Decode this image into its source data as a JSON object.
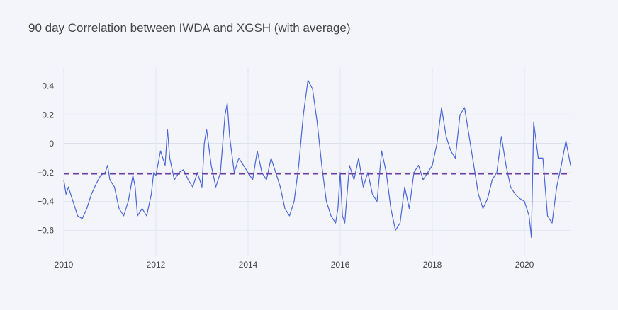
{
  "chart_data": {
    "type": "line",
    "title": "90 day Correlation between IWDA and XGSH (with average)",
    "xlabel": "",
    "ylabel": "",
    "xlim": [
      2010.0,
      2021.0
    ],
    "ylim": [
      -0.78,
      0.53
    ],
    "x_ticks": [
      2010,
      2012,
      2014,
      2016,
      2018,
      2020
    ],
    "x_tick_labels": [
      "2010",
      "2012",
      "2014",
      "2016",
      "2018",
      "2020"
    ],
    "y_ticks": [
      0.4,
      0.2,
      0,
      -0.2,
      -0.4,
      -0.6
    ],
    "y_tick_labels": [
      "0.4",
      "0.2",
      "0",
      "−0.2",
      "−0.4",
      "−0.6"
    ],
    "grid": true,
    "series": [
      {
        "name": "correlation",
        "color": "#4a65d6",
        "x": [
          2010.0,
          2010.05,
          2010.1,
          2010.2,
          2010.3,
          2010.4,
          2010.5,
          2010.55,
          2010.6,
          2010.7,
          2010.8,
          2010.9,
          2010.95,
          2011.0,
          2011.1,
          2011.2,
          2011.3,
          2011.4,
          2011.5,
          2011.55,
          2011.6,
          2011.7,
          2011.8,
          2011.9,
          2011.95,
          2012.0,
          2012.1,
          2012.2,
          2012.25,
          2012.3,
          2012.4,
          2012.5,
          2012.6,
          2012.7,
          2012.8,
          2012.9,
          2013.0,
          2013.05,
          2013.1,
          2013.2,
          2013.3,
          2013.4,
          2013.5,
          2013.55,
          2013.6,
          2013.7,
          2013.8,
          2013.9,
          2014.0,
          2014.1,
          2014.2,
          2014.3,
          2014.4,
          2014.5,
          2014.6,
          2014.7,
          2014.8,
          2014.9,
          2015.0,
          2015.1,
          2015.2,
          2015.3,
          2015.4,
          2015.5,
          2015.6,
          2015.7,
          2015.8,
          2015.9,
          2015.95,
          2016.0,
          2016.05,
          2016.1,
          2016.2,
          2016.3,
          2016.4,
          2016.5,
          2016.6,
          2016.7,
          2016.8,
          2016.9,
          2017.0,
          2017.1,
          2017.2,
          2017.3,
          2017.4,
          2017.5,
          2017.6,
          2017.7,
          2017.8,
          2017.9,
          2018.0,
          2018.1,
          2018.2,
          2018.3,
          2018.4,
          2018.5,
          2018.6,
          2018.7,
          2018.8,
          2018.9,
          2019.0,
          2019.1,
          2019.2,
          2019.3,
          2019.4,
          2019.5,
          2019.6,
          2019.7,
          2019.8,
          2019.9,
          2020.0,
          2020.1,
          2020.15,
          2020.2,
          2020.3,
          2020.4,
          2020.5,
          2020.6,
          2020.7,
          2020.8,
          2020.9,
          2021.0
        ],
        "y": [
          -0.25,
          -0.35,
          -0.3,
          -0.4,
          -0.5,
          -0.52,
          -0.45,
          -0.4,
          -0.35,
          -0.28,
          -0.22,
          -0.2,
          -0.15,
          -0.25,
          -0.3,
          -0.45,
          -0.5,
          -0.4,
          -0.22,
          -0.3,
          -0.5,
          -0.45,
          -0.5,
          -0.35,
          -0.2,
          -0.22,
          -0.05,
          -0.15,
          0.1,
          -0.1,
          -0.25,
          -0.2,
          -0.18,
          -0.25,
          -0.3,
          -0.2,
          -0.3,
          0.0,
          0.1,
          -0.15,
          -0.3,
          -0.2,
          0.2,
          0.28,
          0.05,
          -0.2,
          -0.1,
          -0.15,
          -0.2,
          -0.25,
          -0.05,
          -0.2,
          -0.25,
          -0.1,
          -0.2,
          -0.3,
          -0.45,
          -0.5,
          -0.4,
          -0.15,
          0.2,
          0.44,
          0.38,
          0.15,
          -0.15,
          -0.4,
          -0.5,
          -0.55,
          -0.45,
          -0.2,
          -0.5,
          -0.55,
          -0.15,
          -0.25,
          -0.1,
          -0.3,
          -0.2,
          -0.35,
          -0.4,
          -0.05,
          -0.2,
          -0.45,
          -0.6,
          -0.55,
          -0.3,
          -0.45,
          -0.2,
          -0.15,
          -0.25,
          -0.2,
          -0.15,
          0.0,
          0.25,
          0.05,
          -0.05,
          -0.1,
          0.2,
          0.25,
          0.05,
          -0.15,
          -0.35,
          -0.45,
          -0.38,
          -0.25,
          -0.2,
          0.05,
          -0.15,
          -0.3,
          -0.35,
          -0.38,
          -0.4,
          -0.5,
          -0.65,
          0.15,
          -0.1,
          -0.1,
          -0.5,
          -0.55,
          -0.3,
          -0.15,
          0.02,
          -0.15
        ]
      },
      {
        "name": "average",
        "color": "#6e3f9e",
        "dash": "dashed",
        "x": [
          2010.0,
          2021.0
        ],
        "y": [
          -0.21,
          -0.21
        ]
      }
    ]
  }
}
